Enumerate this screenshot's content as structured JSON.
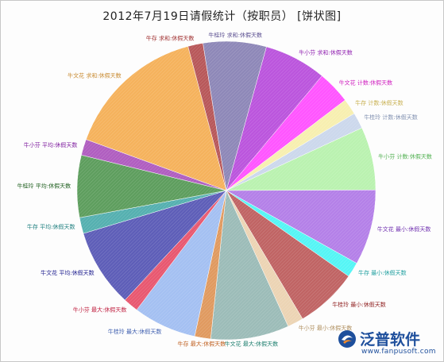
{
  "chart_data": {
    "type": "pie",
    "title": "2012年7月19日请假统计（按职员） [饼状图]",
    "slices": [
      {
        "label": "牛文花 求和:休假天数",
        "value": 15.0,
        "color": "#f5b25c"
      },
      {
        "label": "牛存 求和:休假天数",
        "value": 1.6,
        "color": "#b8585a"
      },
      {
        "label": "牛桂玲 求和:休假天数",
        "value": 6.7,
        "color": "#8e88b8"
      },
      {
        "label": "牛小芬 求和:休假天数",
        "value": 6.6,
        "color": "#bb55dd"
      },
      {
        "label": "牛文花 计数:休假天数",
        "value": 3.5,
        "color": "#ff55ff"
      },
      {
        "label": "牛存 计数:休假天数",
        "value": 1.7,
        "color": "#f7efb0"
      },
      {
        "label": "牛桂玲 计数:休假天数",
        "value": 1.7,
        "color": "#ccd8ec"
      },
      {
        "label": "牛小芬 计数:休假天数",
        "value": 6.7,
        "color": "#baf2b0"
      },
      {
        "label": "牛文花 最小:休假天数",
        "value": 8.0,
        "color": "#b480e8"
      },
      {
        "label": "牛存 最小:休假天数",
        "value": 1.6,
        "color": "#55f5f5"
      },
      {
        "label": "牛桂玲 最小:休假天数",
        "value": 6.6,
        "color": "#c06464"
      },
      {
        "label": "牛小芬 最小:休假天数",
        "value": 1.7,
        "color": "#ecd4b4"
      },
      {
        "label": "牛文花 最大:休假天数",
        "value": 8.3,
        "color": "#9cbcb8"
      },
      {
        "label": "牛存 最大:休假天数",
        "value": 1.7,
        "color": "#e09a60"
      },
      {
        "label": "牛桂玲 最大:休假天数",
        "value": 6.7,
        "color": "#a4c0f2"
      },
      {
        "label": "牛小芬 最大:休假天数",
        "value": 1.6,
        "color": "#e85870"
      },
      {
        "label": "牛文花 平均:休假天数",
        "value": 8.3,
        "color": "#5e5eb8"
      },
      {
        "label": "牛存 平均:休假天数",
        "value": 1.7,
        "color": "#55b0b0"
      },
      {
        "label": "牛桂玲 平均:休假天数",
        "value": 6.6,
        "color": "#5e9e5e"
      },
      {
        "label": "牛小芬 平均:休假天数",
        "value": 1.7,
        "color": "#b05ec0"
      }
    ],
    "label_colors": [
      "#c88a30",
      "#a03030",
      "#5a4e90",
      "#9020b0",
      "#d020c0",
      "#c8b050",
      "#8090b0",
      "#50b050",
      "#7030b0",
      "#20a0a0",
      "#902020",
      "#b09060",
      "#208070",
      "#c06020",
      "#4060b0",
      "#c02040",
      "#202090",
      "#208080",
      "#206020",
      "#8020a0"
    ],
    "legend": "none"
  },
  "brand": {
    "name": "泛普软件",
    "url": "www.fanpusoft.com"
  }
}
